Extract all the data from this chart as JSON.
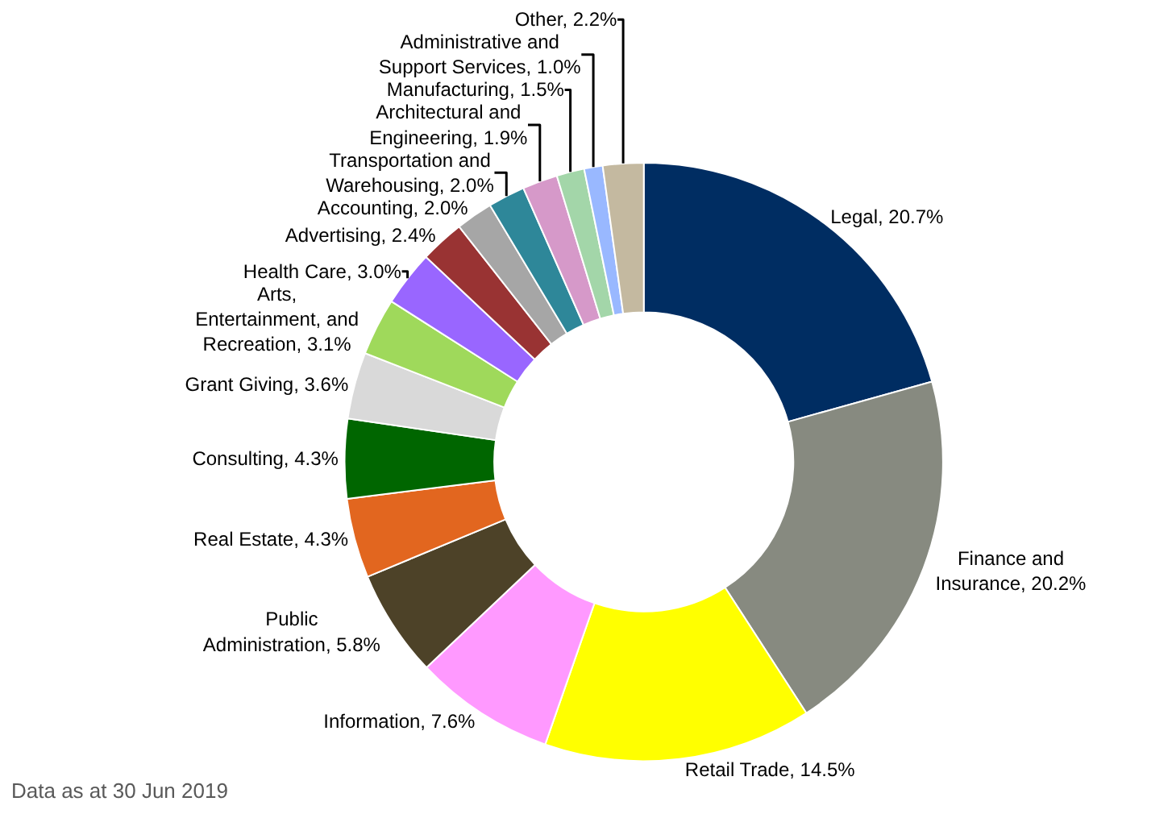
{
  "chart_data": {
    "type": "donut",
    "categories": [
      "Legal",
      "Finance and Insurance",
      "Retail Trade",
      "Information",
      "Public Administration",
      "Real Estate",
      "Consulting",
      "Grant Giving",
      "Arts, Entertainment, and Recreation",
      "Health Care",
      "Advertising",
      "Accounting",
      "Transportation and Warehousing",
      "Architectural and Engineering",
      "Manufacturing",
      "Administrative and Support Services",
      "Other"
    ],
    "values": [
      20.7,
      20.2,
      14.5,
      7.6,
      5.8,
      4.3,
      4.3,
      3.6,
      3.1,
      3.0,
      2.4,
      2.0,
      2.0,
      1.9,
      1.5,
      1.0,
      2.2
    ],
    "colors": [
      "#002d62",
      "#878a80",
      "#ffff00",
      "#ff99ff",
      "#4d4228",
      "#e2661f",
      "#006600",
      "#d9d9d9",
      "#9fd95b",
      "#9966ff",
      "#993333",
      "#a6a6a6",
      "#2e8799",
      "#d699c9",
      "#a3d6a9",
      "#99b8ff",
      "#c4b9a0"
    ],
    "value_labels": [
      "20.7%",
      "20.2%",
      "14.5%",
      "7.6%",
      "5.8%",
      "4.3%",
      "4.3%",
      "3.6%",
      "3.1%",
      "3.0%",
      "2.4%",
      "2.0%",
      "2.0%",
      "1.9%",
      "1.5%",
      "1.0%",
      "2.2%"
    ],
    "annotations": [
      "Data as at 30 Jun 2019"
    ],
    "legend": false
  }
}
